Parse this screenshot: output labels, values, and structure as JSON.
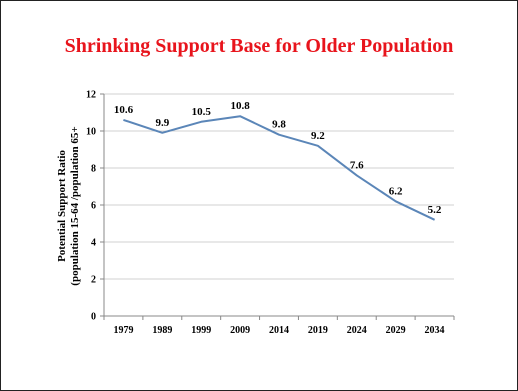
{
  "chart_data": {
    "type": "line",
    "title": "Shrinking Support Base for Older Population",
    "ylabel_lines": [
      "Potential Support Ratio",
      "(population 15-64 /population 65+"
    ],
    "xlabel": "",
    "categories": [
      "1979",
      "1989",
      "1999",
      "2009",
      "2014",
      "2019",
      "2024",
      "2029",
      "2034"
    ],
    "series": [
      {
        "values": [
          10.6,
          9.9,
          10.5,
          10.8,
          9.8,
          9.2,
          7.6,
          6.2,
          5.2
        ]
      }
    ],
    "data_labels": [
      "10.6",
      "9.9",
      "10.5",
      "10.8",
      "9.8",
      "9.2",
      "7.6",
      "6.2",
      "5.2"
    ],
    "yticks": [
      "0",
      "2",
      "4",
      "6",
      "8",
      "10",
      "12"
    ],
    "ylim": [
      0,
      12
    ],
    "grid": true,
    "legend": "none",
    "colors": {
      "title": "#e8141c",
      "line": "#5b86b8",
      "grid": "#d0d0d0",
      "axis": "#888888"
    }
  }
}
